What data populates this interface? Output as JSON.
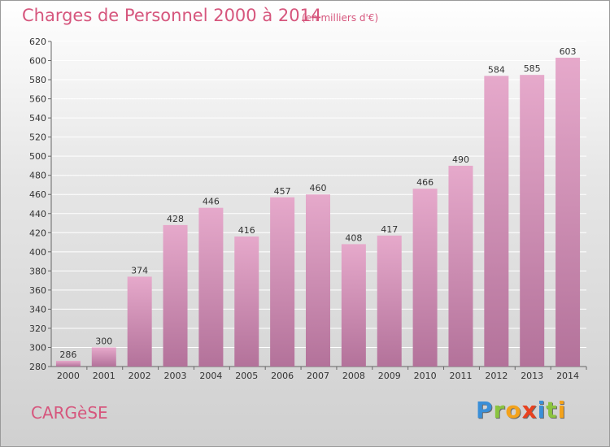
{
  "title": "Charges de Personnel 2000 à 2014",
  "unit": "(en milliers d'€)",
  "place": "CARGèSE",
  "logo": {
    "text": "Proxiti",
    "letters": [
      {
        "ch": "P",
        "color": "#3a8fd8"
      },
      {
        "ch": "r",
        "color": "#8bc43f"
      },
      {
        "ch": "o",
        "color": "#f3a21b"
      },
      {
        "ch": "x",
        "color": "#e8411f"
      },
      {
        "ch": "i",
        "color": "#3a8fd8"
      },
      {
        "ch": "t",
        "color": "#8bc43f"
      },
      {
        "ch": "i",
        "color": "#f3a21b"
      }
    ]
  },
  "colors": {
    "bar_top": "#e6a9cb",
    "bar_bottom": "#b3729a",
    "text_accent": "#d6567d",
    "grid": "#ffffff"
  },
  "chart_data": {
    "type": "bar",
    "categories": [
      "2000",
      "2001",
      "2002",
      "2003",
      "2004",
      "2005",
      "2006",
      "2007",
      "2008",
      "2009",
      "2010",
      "2011",
      "2012",
      "2013",
      "2014"
    ],
    "values": [
      286,
      300,
      374,
      428,
      446,
      416,
      457,
      460,
      408,
      417,
      466,
      490,
      584,
      585,
      603
    ],
    "ylim": [
      280,
      620
    ],
    "yticks": [
      280,
      300,
      320,
      340,
      360,
      380,
      400,
      420,
      440,
      460,
      480,
      500,
      520,
      540,
      560,
      580,
      600,
      620
    ],
    "grid": true,
    "data_labels": true
  }
}
